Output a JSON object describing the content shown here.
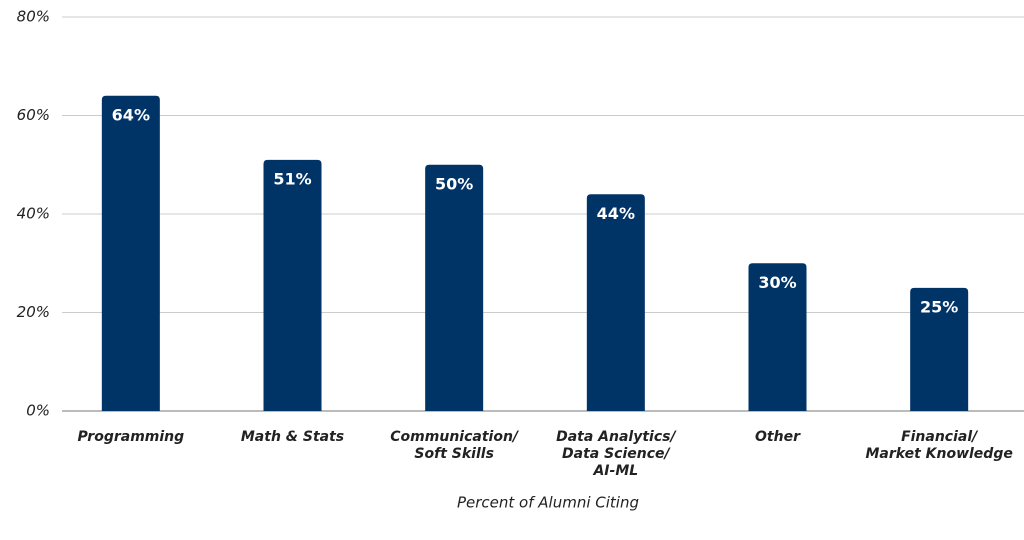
{
  "chart_data": {
    "type": "bar",
    "x_label": "Percent of Alumni Citing",
    "categories": [
      "Programming",
      "Math & Stats",
      "Communication/\nSoft Skills",
      "Data Analytics/\nData Science/\nAI-ML",
      "Other",
      "Financial/\nMarket Knowledge"
    ],
    "values": [
      64,
      51,
      50,
      44,
      30,
      25
    ],
    "value_labels": [
      "64%",
      "51%",
      "50%",
      "44%",
      "30%",
      "25%"
    ],
    "color": "#003366",
    "ylim": [
      0,
      80
    ],
    "yticks": [
      {
        "value": 0,
        "label": "0%"
      },
      {
        "value": 20,
        "label": "20%"
      },
      {
        "value": 40,
        "label": "40%"
      },
      {
        "value": 60,
        "label": "60%"
      },
      {
        "value": 80,
        "label": "80%"
      }
    ],
    "grid": true
  }
}
